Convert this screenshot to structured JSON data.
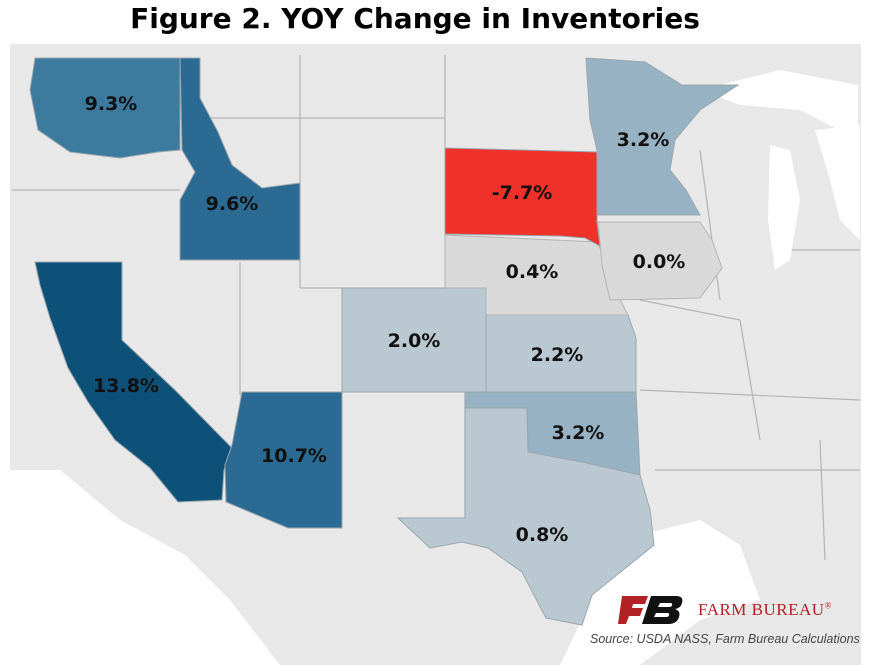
{
  "title": "Figure 2. YOY Change in Inventories",
  "colors": {
    "base": "#e8e8e8",
    "border": "#b4b4b4",
    "light": "#bac8d2",
    "mid": "#97b2c3",
    "dark1": "#3c7a9e",
    "dark2": "#2b6a93",
    "darkest": "#0d5078",
    "red": "#ee3129",
    "neutral": "#d9d9d9",
    "brand_red": "#b22225"
  },
  "states": [
    {
      "state": "Washington",
      "value": "9.3%"
    },
    {
      "state": "Idaho",
      "value": "9.6%"
    },
    {
      "state": "California",
      "value": "13.8%"
    },
    {
      "state": "Arizona",
      "value": "10.7%"
    },
    {
      "state": "Colorado",
      "value": "2.0%"
    },
    {
      "state": "Kansas",
      "value": "2.2%"
    },
    {
      "state": "Oklahoma",
      "value": "3.2%"
    },
    {
      "state": "Texas",
      "value": "0.8%"
    },
    {
      "state": "Nebraska",
      "value": "0.4%"
    },
    {
      "state": "Iowa",
      "value": "0.0%"
    },
    {
      "state": "South Dakota",
      "value": "-7.7%"
    },
    {
      "state": "Minnesota",
      "value": "3.2%"
    }
  ],
  "brand": {
    "name": "FARM BUREAU",
    "mark": "®"
  },
  "source": "Source: USDA NASS, Farm Bureau Calculations"
}
